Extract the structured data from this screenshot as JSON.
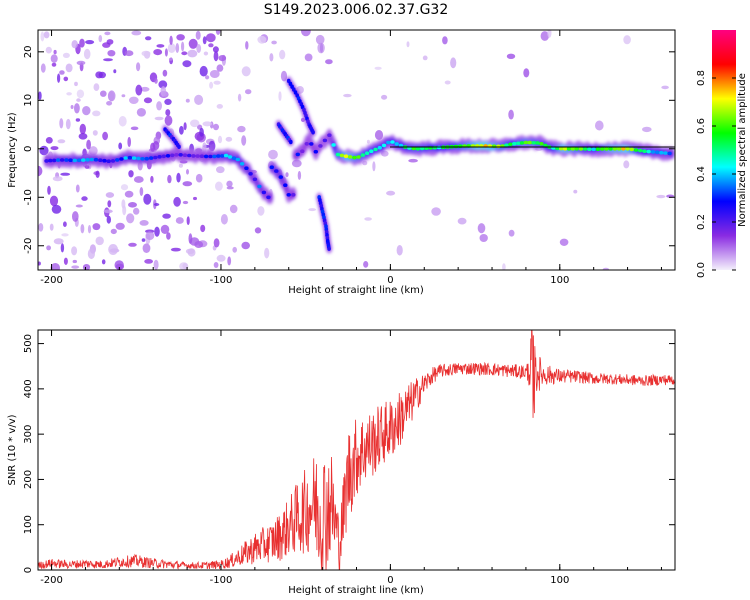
{
  "title": "S149.2023.006.02.37.G32",
  "chart_data": [
    {
      "type": "heatmap",
      "name": "spectrogram",
      "xlabel": "Height of straight line (km)",
      "ylabel": "Frequency (Hz)",
      "xlim": [
        -208,
        168
      ],
      "ylim": [
        -25,
        24.5
      ],
      "xticks": [
        -200,
        -100,
        0,
        100
      ],
      "xtick_labels": [
        "-200",
        "-100",
        "0",
        "100"
      ],
      "yticks": [
        -20,
        -10,
        0,
        10,
        20
      ],
      "ytick_labels": [
        "-20",
        "-10",
        "0",
        "10",
        "20"
      ],
      "colorbar": {
        "label": "Normalized spectral amplitude",
        "range": [
          0,
          1
        ],
        "ticks": [
          0.0,
          0.2,
          0.4,
          0.6,
          0.8
        ],
        "tick_labels": [
          "0.0",
          "0.2",
          "0.4",
          "0.6",
          "0.8"
        ],
        "colors": [
          "#f4f0fb",
          "#8a2be2",
          "#0000ff",
          "#00ffff",
          "#00ff00",
          "#ffff00",
          "#ff0000",
          "#ff0080"
        ]
      },
      "main_trace": [
        {
          "x": -203,
          "f": -2.5,
          "a": 0.25
        },
        {
          "x": -195,
          "f": -2.3,
          "a": 0.3
        },
        {
          "x": -185,
          "f": -2.4,
          "a": 0.35
        },
        {
          "x": -175,
          "f": -2.2,
          "a": 0.3
        },
        {
          "x": -165,
          "f": -2.6,
          "a": 0.28
        },
        {
          "x": -155,
          "f": -1.8,
          "a": 0.35
        },
        {
          "x": -145,
          "f": -2.1,
          "a": 0.3
        },
        {
          "x": -135,
          "f": -1.6,
          "a": 0.28
        },
        {
          "x": -125,
          "f": -1.2,
          "a": 0.22
        },
        {
          "x": -115,
          "f": -1.5,
          "a": 0.2
        },
        {
          "x": -105,
          "f": -1.6,
          "a": 0.25
        },
        {
          "x": -97,
          "f": -1.4,
          "a": 0.35
        },
        {
          "x": -90,
          "f": -2.2,
          "a": 0.38
        },
        {
          "x": -85,
          "f": -4.0,
          "a": 0.32
        },
        {
          "x": -80,
          "f": -6.3,
          "a": 0.28
        },
        {
          "x": -76,
          "f": -8.5,
          "a": 0.3
        },
        {
          "x": -72,
          "f": -10.0,
          "a": 0.22
        },
        {
          "x": -70,
          "f": -3.8,
          "a": 0.3
        },
        {
          "x": -66,
          "f": -5.0,
          "a": 0.32
        },
        {
          "x": -62,
          "f": -7.5,
          "a": 0.28
        },
        {
          "x": -60,
          "f": -9.5,
          "a": 0.22
        },
        {
          "x": -56,
          "f": -1.5,
          "a": 0.25
        },
        {
          "x": -52,
          "f": -0.5,
          "a": 0.22
        },
        {
          "x": -48,
          "f": 1.8,
          "a": 0.2
        },
        {
          "x": -44,
          "f": -0.6,
          "a": 0.22
        },
        {
          "x": -40,
          "f": 1.2,
          "a": 0.18
        },
        {
          "x": -36,
          "f": 2.8,
          "a": 0.2
        },
        {
          "x": -31,
          "f": -1.2,
          "a": 0.55
        },
        {
          "x": -25,
          "f": -1.6,
          "a": 0.7
        },
        {
          "x": -20,
          "f": -1.9,
          "a": 0.6
        },
        {
          "x": -15,
          "f": -1.1,
          "a": 0.55
        },
        {
          "x": -10,
          "f": -0.3,
          "a": 0.5
        },
        {
          "x": -5,
          "f": 0.4,
          "a": 0.4
        },
        {
          "x": 0,
          "f": 1.6,
          "a": 0.35
        },
        {
          "x": 5,
          "f": 0.8,
          "a": 0.45
        },
        {
          "x": 10,
          "f": 0.2,
          "a": 0.5
        },
        {
          "x": 15,
          "f": 0.0,
          "a": 0.55
        },
        {
          "x": 25,
          "f": 0.2,
          "a": 0.5
        },
        {
          "x": 35,
          "f": 0.4,
          "a": 0.5
        },
        {
          "x": 45,
          "f": 0.6,
          "a": 0.6
        },
        {
          "x": 55,
          "f": 0.6,
          "a": 0.75
        },
        {
          "x": 65,
          "f": 0.5,
          "a": 0.6
        },
        {
          "x": 72,
          "f": 1.0,
          "a": 0.5
        },
        {
          "x": 80,
          "f": 1.3,
          "a": 0.6
        },
        {
          "x": 88,
          "f": 1.2,
          "a": 0.55
        },
        {
          "x": 95,
          "f": 0.2,
          "a": 0.45
        },
        {
          "x": 102,
          "f": 0.0,
          "a": 0.7
        },
        {
          "x": 110,
          "f": 0.0,
          "a": 0.6
        },
        {
          "x": 120,
          "f": -0.1,
          "a": 0.45
        },
        {
          "x": 130,
          "f": 0.0,
          "a": 0.65
        },
        {
          "x": 140,
          "f": 0.0,
          "a": 0.7
        },
        {
          "x": 150,
          "f": -0.5,
          "a": 0.45
        },
        {
          "x": 160,
          "f": -0.8,
          "a": 0.35
        },
        {
          "x": 166,
          "f": -1.0,
          "a": 0.3
        }
      ],
      "branches": [
        [
          {
            "x": -60,
            "f": 14
          },
          {
            "x": -55,
            "f": 11
          },
          {
            "x": -51,
            "f": 8
          },
          {
            "x": -48,
            "f": 5
          },
          {
            "x": -45,
            "f": 3
          }
        ],
        [
          {
            "x": -66,
            "f": 5
          },
          {
            "x": -62,
            "f": 3
          },
          {
            "x": -58,
            "f": 1
          }
        ],
        [
          {
            "x": -42,
            "f": -10
          },
          {
            "x": -40,
            "f": -13
          },
          {
            "x": -38,
            "f": -16
          },
          {
            "x": -37,
            "f": -19
          },
          {
            "x": -36,
            "f": -21
          }
        ],
        [
          {
            "x": -133,
            "f": 4
          },
          {
            "x": -128,
            "f": 2
          },
          {
            "x": -124,
            "f": 0
          }
        ]
      ]
    },
    {
      "type": "line",
      "name": "snr",
      "xlabel": "Height of straight line (km)",
      "ylabel": "SNR (10 * v/v)",
      "xlim": [
        -208,
        168
      ],
      "ylim": [
        0,
        530
      ],
      "xticks": [
        -200,
        -100,
        0,
        100
      ],
      "xtick_labels": [
        "-200",
        "-100",
        "0",
        "100"
      ],
      "yticks": [
        0,
        100,
        200,
        300,
        400,
        500
      ],
      "ytick_labels": [
        "0",
        "100",
        "200",
        "300",
        "400",
        "500"
      ],
      "series": [
        {
          "name": "SNR",
          "color": "#e83030",
          "x": [
            -208,
            -200,
            -190,
            -180,
            -170,
            -160,
            -150,
            -140,
            -130,
            -120,
            -110,
            -100,
            -95,
            -90,
            -85,
            -80,
            -75,
            -70,
            -65,
            -60,
            -55,
            -50,
            -45,
            -40,
            -35,
            -30,
            -25,
            -20,
            -15,
            -10,
            -5,
            0,
            5,
            10,
            15,
            20,
            25,
            30,
            35,
            40,
            50,
            60,
            70,
            80,
            85,
            90,
            100,
            110,
            120,
            130,
            140,
            150,
            160,
            168
          ],
          "values": [
            10,
            15,
            12,
            14,
            12,
            18,
            20,
            15,
            12,
            10,
            10,
            12,
            18,
            28,
            38,
            48,
            55,
            62,
            75,
            95,
            115,
            130,
            150,
            120,
            150,
            55,
            210,
            250,
            270,
            280,
            300,
            310,
            330,
            355,
            385,
            410,
            430,
            440,
            442,
            445,
            445,
            443,
            440,
            437,
            440,
            432,
            428,
            427,
            423,
            422,
            420,
            418,
            420,
            420
          ],
          "noise": [
            8,
            10,
            9,
            10,
            9,
            12,
            14,
            11,
            9,
            7,
            8,
            10,
            14,
            20,
            28,
            35,
            40,
            45,
            55,
            65,
            80,
            95,
            110,
            160,
            120,
            60,
            110,
            90,
            80,
            75,
            70,
            70,
            65,
            55,
            40,
            25,
            18,
            15,
            14,
            14,
            14,
            14,
            15,
            16,
            60,
            25,
            16,
            14,
            13,
            12,
            12,
            12,
            12,
            12
          ]
        }
      ]
    }
  ]
}
